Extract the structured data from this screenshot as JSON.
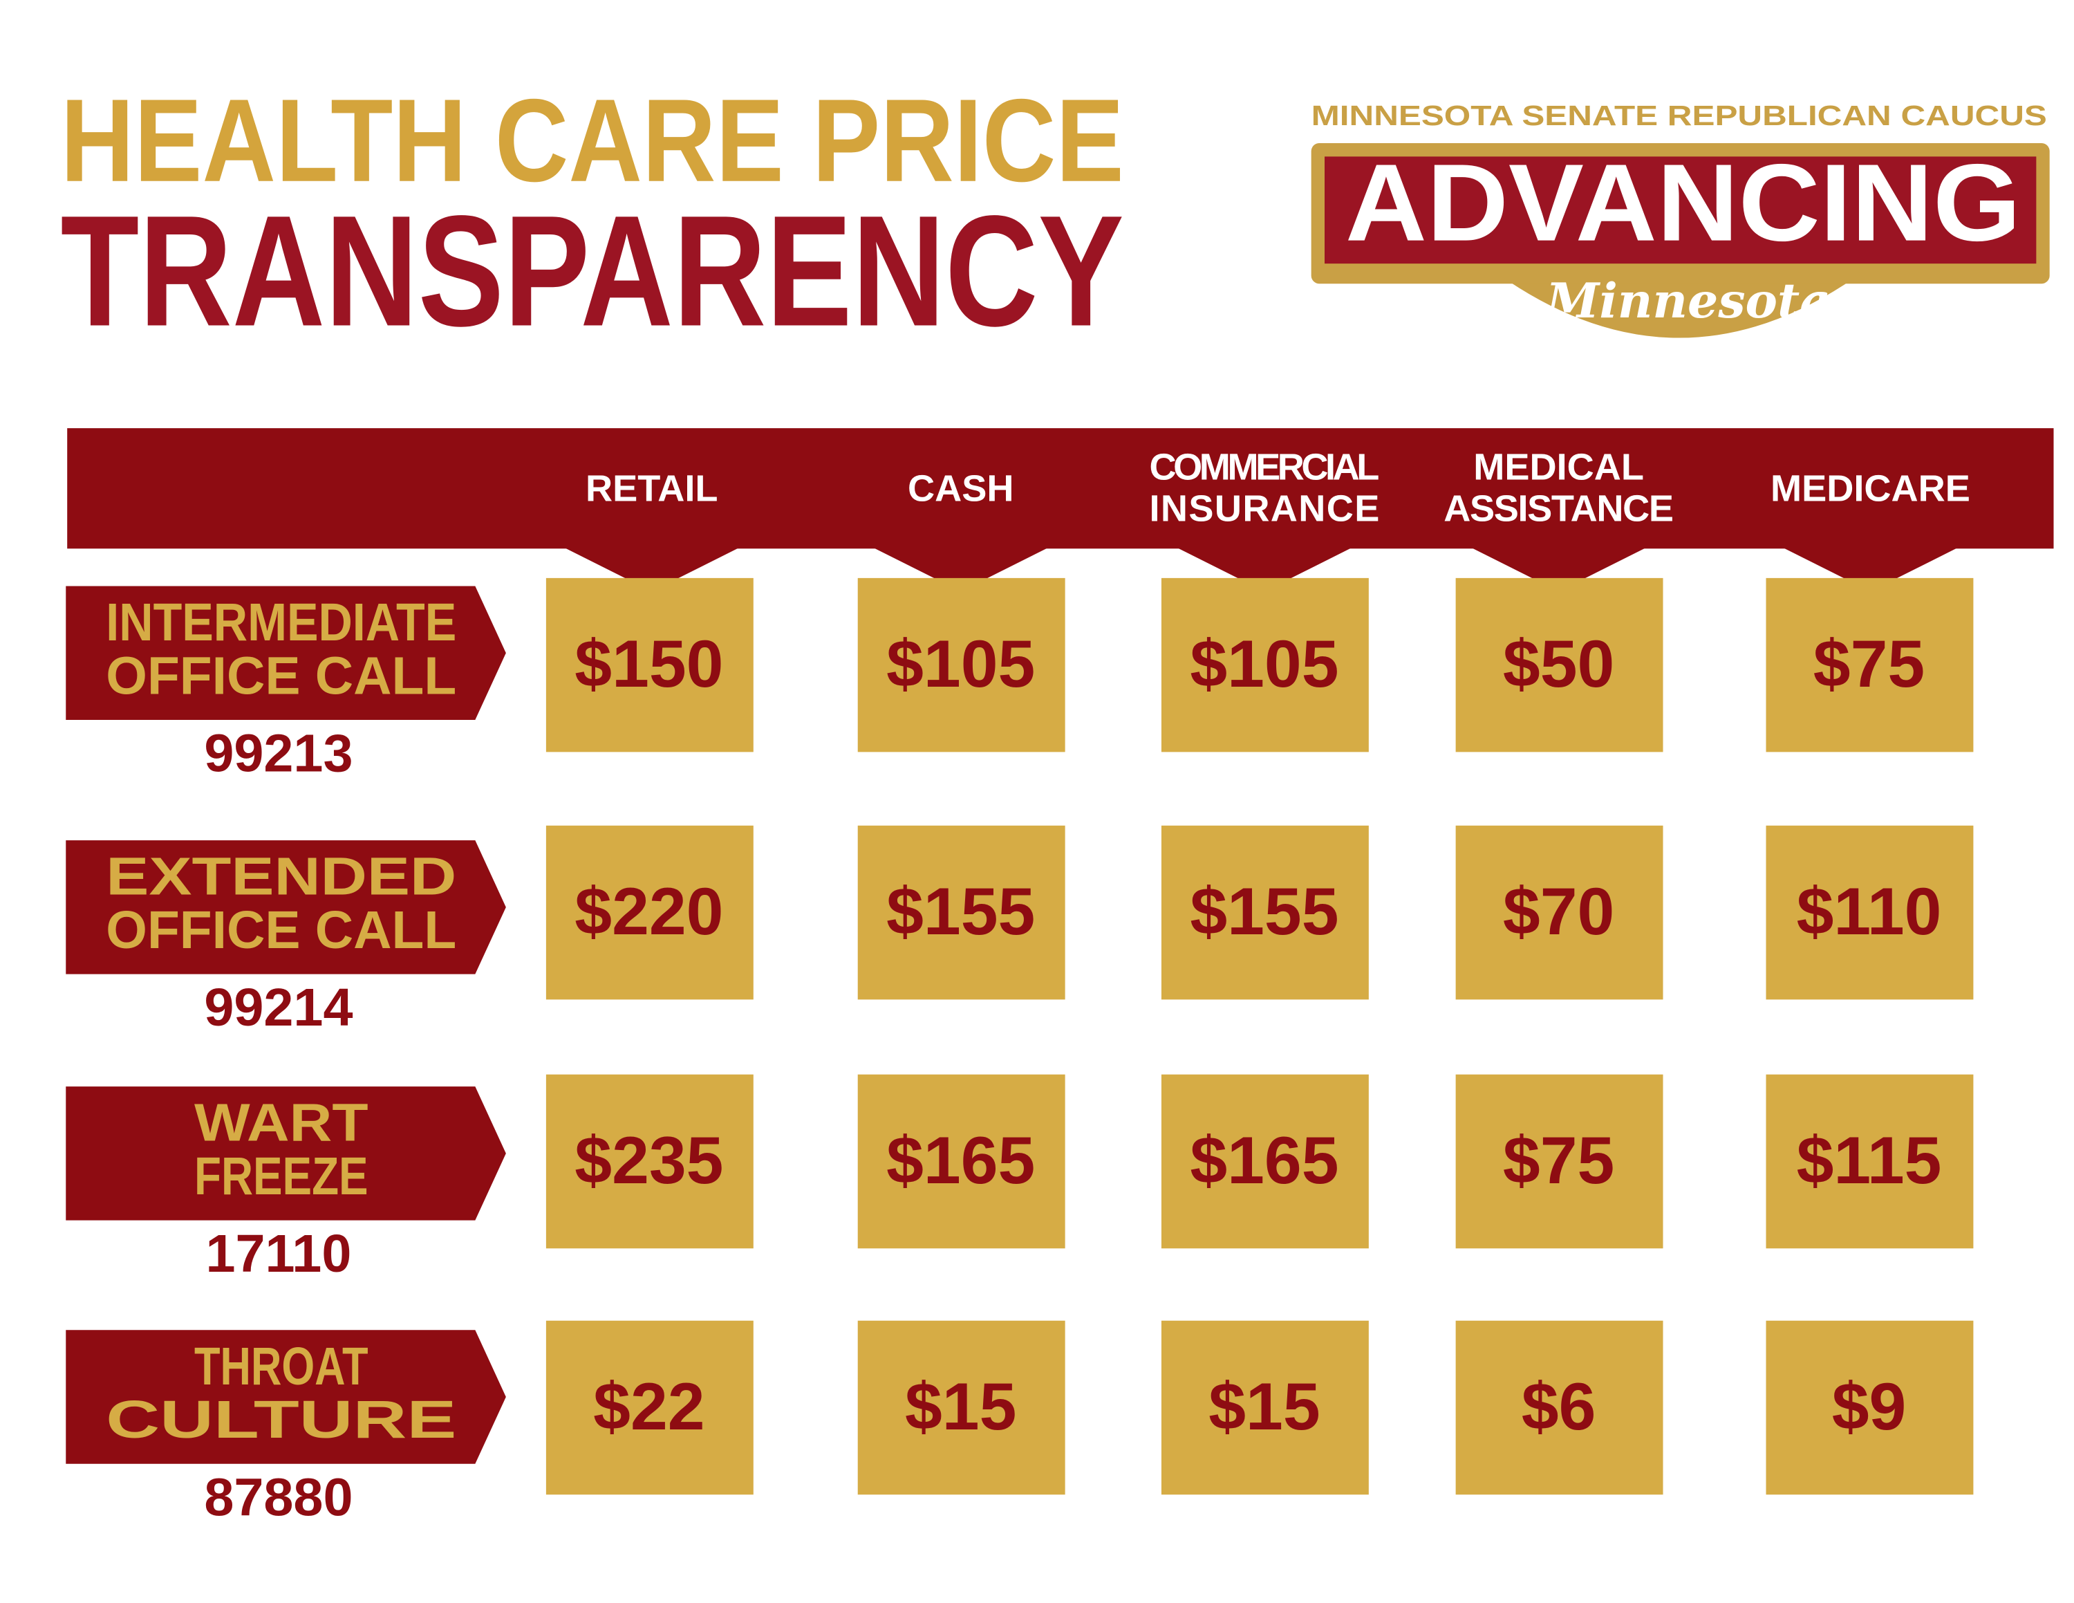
{
  "header": {
    "title_line1": "HEALTH CARE PRICE",
    "title_line2": "TRANSPARENCY"
  },
  "logo": {
    "caucus": "MINNESOTA SENATE REPUBLICAN CAUCUS",
    "wordmark": "ADVANCING",
    "script": "Minnesota"
  },
  "table": {
    "columns": [
      [
        "RETAIL"
      ],
      [
        "CASH"
      ],
      [
        "COMMERCIAL",
        "INSURANCE"
      ],
      [
        "MEDICAL",
        "ASSISTANCE"
      ],
      [
        "MEDICARE"
      ]
    ],
    "rows": [
      {
        "name": [
          "INTERMEDIATE",
          "OFFICE CALL"
        ],
        "code": "99213",
        "prices": [
          "$150",
          "$105",
          "$105",
          "$50",
          "$75"
        ]
      },
      {
        "name": [
          "EXTENDED",
          "OFFICE CALL"
        ],
        "code": "99214",
        "prices": [
          "$220",
          "$155",
          "$155",
          "$70",
          "$110"
        ]
      },
      {
        "name": [
          "WART",
          "FREEZE"
        ],
        "code": "17110",
        "prices": [
          "$235",
          "$165",
          "$165",
          "$75",
          "$115"
        ]
      },
      {
        "name": [
          "THROAT",
          "CULTURE"
        ],
        "code": "87880",
        "prices": [
          "$22",
          "$15",
          "$15",
          "$6",
          "$9"
        ]
      }
    ]
  }
}
